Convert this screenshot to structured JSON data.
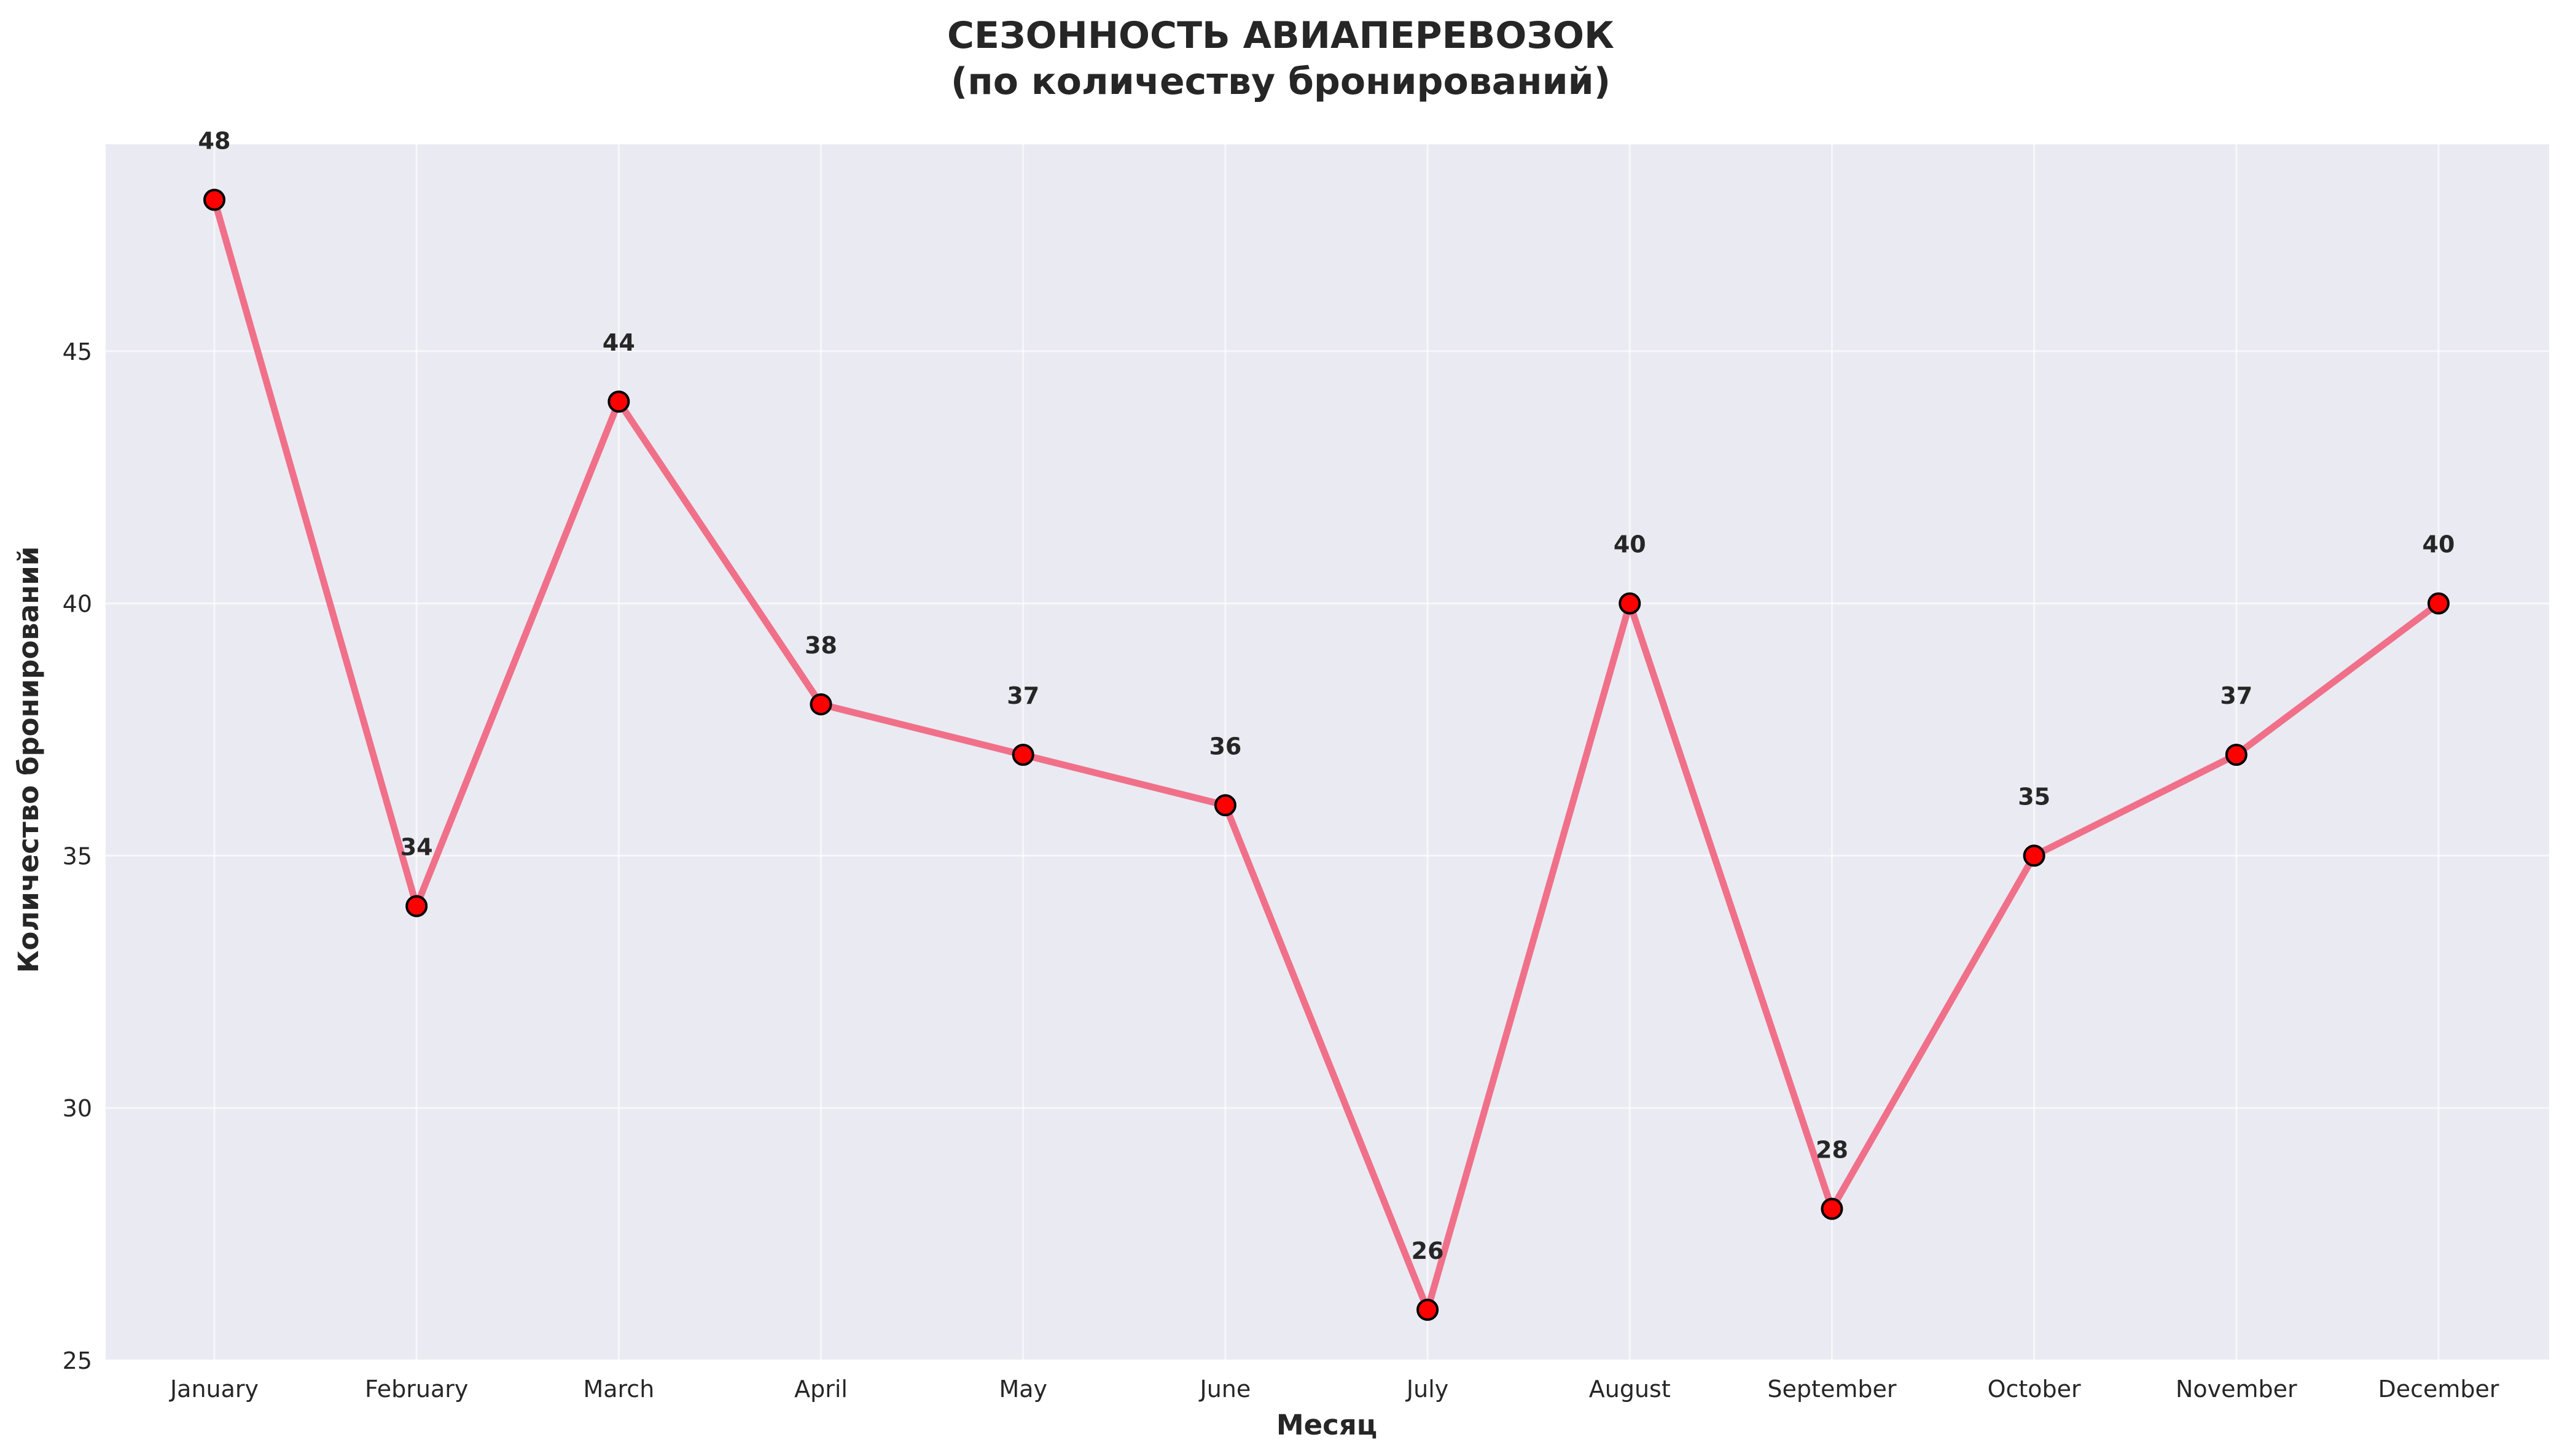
{
  "colors": {
    "plot_background": "#eaeaf2",
    "grid": "#ffffff",
    "line": "#f07089",
    "marker_fill": "#ff0000",
    "marker_edge": "#000000",
    "text": "#262626"
  },
  "chart_data": {
    "type": "line",
    "title_line1": "СЕЗОННОСТЬ АВИАПЕРЕВОЗОК",
    "title_line2": "(по количеству бронирований)",
    "xlabel": "Месяц",
    "ylabel": "Количество бронирований",
    "categories": [
      "January",
      "February",
      "March",
      "April",
      "May",
      "June",
      "July",
      "August",
      "September",
      "October",
      "November",
      "December"
    ],
    "values": [
      48,
      34,
      44,
      38,
      37,
      36,
      26,
      40,
      28,
      35,
      37,
      40
    ],
    "ylim": [
      25,
      49.1
    ],
    "yticks": [
      25,
      30,
      35,
      40,
      45
    ],
    "grid": true,
    "data_labels": true
  }
}
